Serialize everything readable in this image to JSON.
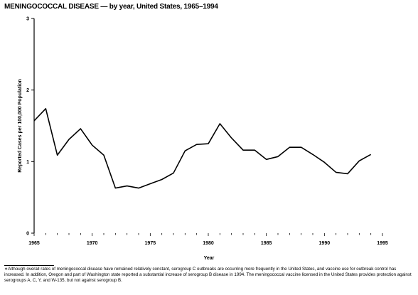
{
  "title": "MENINGOCOCCAL DISEASE — by year, United States, 1965–1994",
  "footnote": "∗Although overall rates of meningococcal disease have remained relatively constant, serogroup C outbreaks are occurring more frequently in the United States, and vaccine use for outbreak control has increased. In addition, Oregon and part of Washington state reported a substantial increase of serogroup B disease in 1994. The meningococcal vaccine licensed in the United States provides protection against serogroups A, C, Y, and W-135, but not against serogroup B.",
  "chart_data": {
    "type": "line",
    "title": "MENINGOCOCCAL DISEASE — by year, United States, 1965–1994",
    "xlabel": "Year",
    "ylabel": "Reported Cases per 100,000 Population",
    "xlim": [
      1965,
      1995
    ],
    "ylim": [
      0,
      3
    ],
    "x_ticks": [
      "1965",
      "1970",
      "1975",
      "1980",
      "1985",
      "1990",
      "1995"
    ],
    "y_ticks": [
      "0",
      "1",
      "2",
      "3"
    ],
    "grid": false,
    "series": [
      {
        "x": [
          1965,
          1966,
          1967,
          1968,
          1969,
          1970,
          1971,
          1972,
          1973,
          1974,
          1975,
          1976,
          1977,
          1978,
          1979,
          1980,
          1981,
          1982,
          1983,
          1984,
          1985,
          1986,
          1987,
          1988,
          1989,
          1990,
          1991,
          1992,
          1993,
          1994
        ],
        "values": [
          1.57,
          1.74,
          1.09,
          1.31,
          1.46,
          1.23,
          1.09,
          0.63,
          0.66,
          0.63,
          0.69,
          0.75,
          0.84,
          1.15,
          1.24,
          1.25,
          1.53,
          1.33,
          1.16,
          1.16,
          1.03,
          1.07,
          1.2,
          1.2,
          1.1,
          0.99,
          0.85,
          0.83,
          1.01,
          1.1
        ],
        "color": "#000000"
      }
    ]
  }
}
